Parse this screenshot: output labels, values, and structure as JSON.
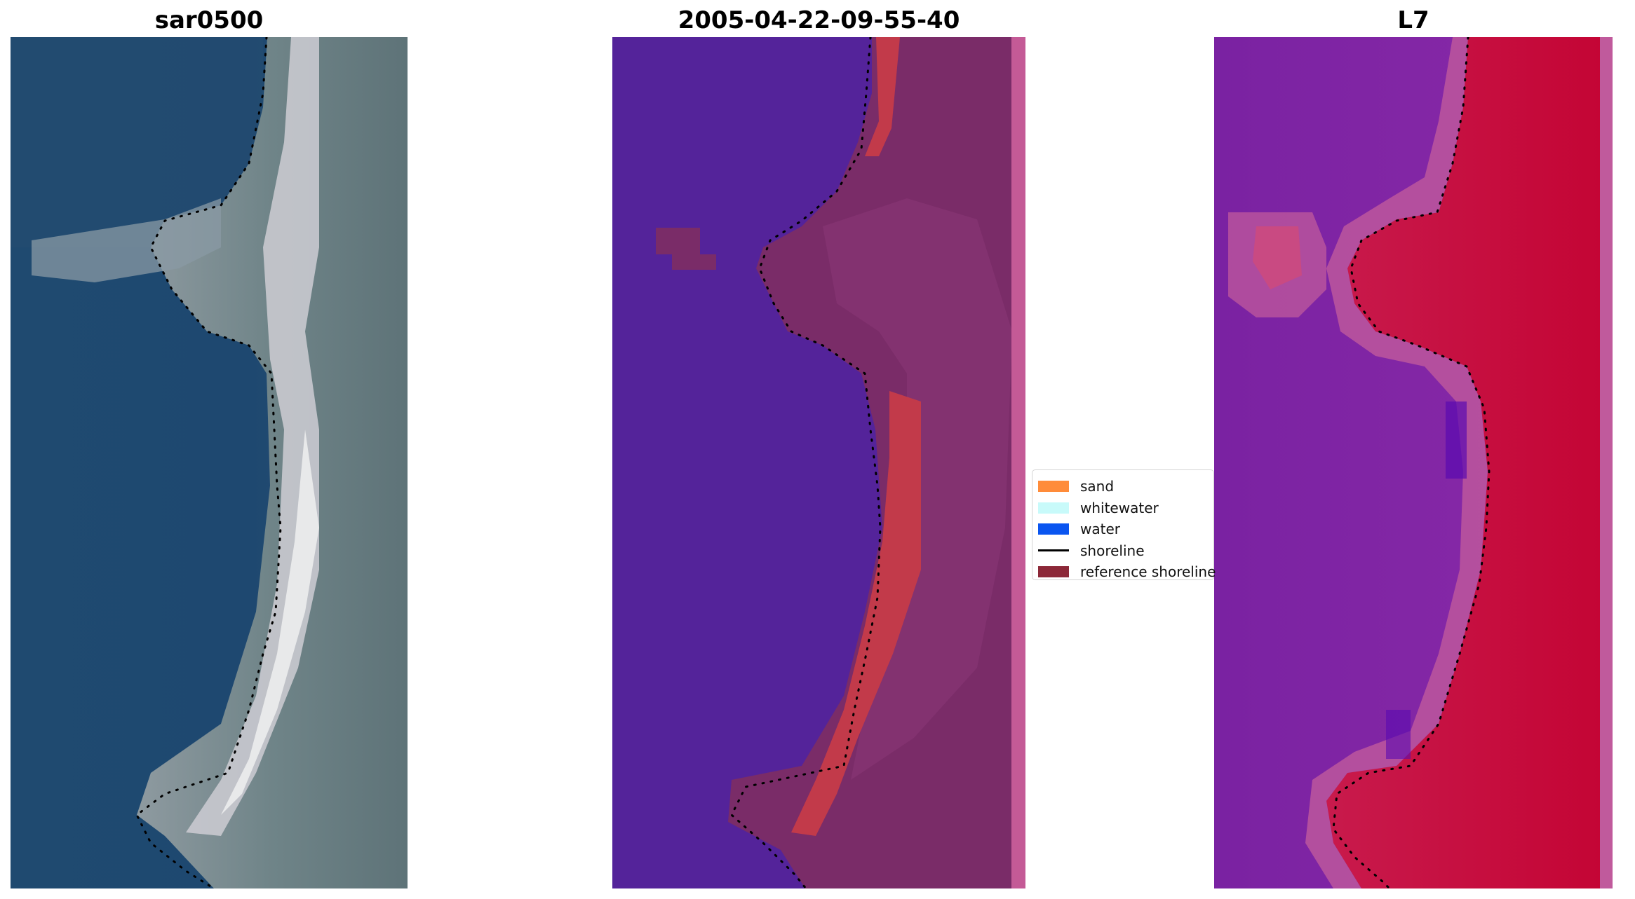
{
  "panels": {
    "rgb": {
      "title": "sar0500"
    },
    "classification": {
      "title": "2005-04-22-09-55-40"
    },
    "index": {
      "title": "L7"
    }
  },
  "legend": {
    "items": [
      {
        "label": "sand",
        "type": "patch",
        "color": "#ff8c3a"
      },
      {
        "label": "whitewater",
        "type": "patch",
        "color": "#c8fafa"
      },
      {
        "label": "water",
        "type": "patch",
        "color": "#0a55f0"
      },
      {
        "label": "shoreline",
        "type": "line",
        "color": "#000000"
      },
      {
        "label": "reference shoreline",
        "type": "patch",
        "color": "#8c2838"
      }
    ]
  },
  "colors": {
    "classification_water": "#54239a",
    "classification_land": "#7a2c68",
    "classification_sand_edge": "#c23a4a",
    "index_low": "#7d24a6",
    "index_high": "#c60636"
  }
}
